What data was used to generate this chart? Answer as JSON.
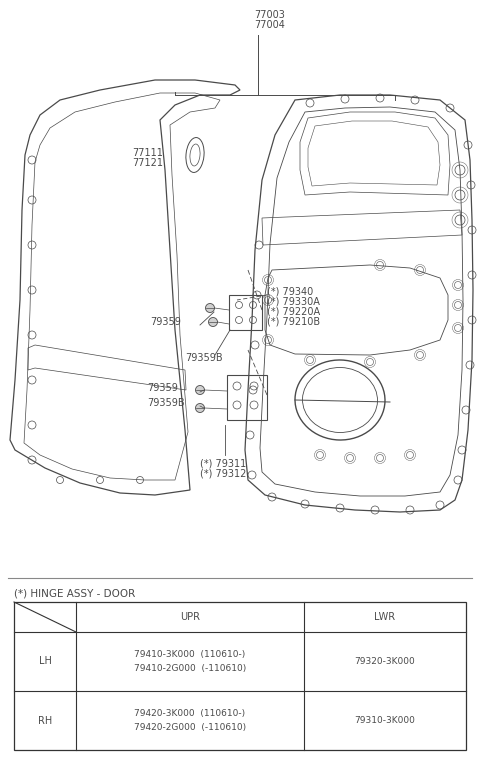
{
  "bg_color": "#ffffff",
  "fig_width": 4.8,
  "fig_height": 7.59,
  "dpi": 100,
  "line_color": "#4a4a4a",
  "text_color": "#4a4a4a",
  "font_size": 7.0,
  "label_77003": "77003",
  "label_77004": "77004",
  "label_77111": "77111",
  "label_77121": "77121",
  "label_79340": "(*) 79340",
  "label_79330A": "(*) 79330A",
  "label_79220A": "(*) 79220A",
  "label_79210B": "(*) 79210B",
  "label_79359_u": "79359",
  "label_79359B_u": "79359B",
  "label_79359_l": "79359",
  "label_79359B_l": "79359B",
  "label_79311": "(*) 79311",
  "label_79312": "(*) 79312",
  "label_hinge": "(*) HINGE ASSY - DOOR",
  "table_col_headers": [
    "UPR",
    "LWR"
  ],
  "table_row_headers": [
    "LH",
    "RH"
  ],
  "table_cells": [
    [
      "79410-3K000  (110610-)\n79410-2G000  (-110610)",
      "79320-3K000"
    ],
    [
      "79420-3K000  (110610-)\n79420-2G000  (-110610)",
      "79310-3K000"
    ]
  ]
}
